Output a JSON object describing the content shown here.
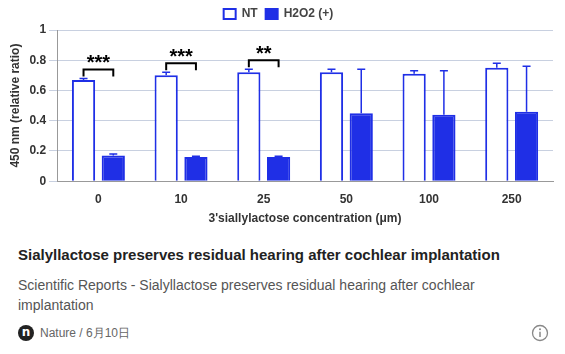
{
  "chart_data": {
    "type": "bar",
    "categories": [
      "0",
      "10",
      "25",
      "50",
      "100",
      "250"
    ],
    "series": [
      {
        "name": "NT",
        "color": "#1f2fe6",
        "marker": "hollow",
        "values": [
          0.67,
          0.7,
          0.72,
          0.72,
          0.71,
          0.75
        ],
        "errors": [
          0.01,
          0.02,
          0.02,
          0.02,
          0.02,
          0.03
        ]
      },
      {
        "name": "H2O2 (+)",
        "color": "#1f2fe6",
        "marker": "filled",
        "values": [
          0.17,
          0.16,
          0.16,
          0.45,
          0.44,
          0.46
        ],
        "errors": [
          0.01,
          0.005,
          0.005,
          0.29,
          0.29,
          0.3
        ]
      }
    ],
    "x_label": "3'siallylactose concentration (μm)",
    "y_label": "450 nm (relative ratio)",
    "ylim": [
      0,
      1
    ],
    "yticks": [
      0,
      0.2,
      0.4,
      0.6,
      0.8,
      1
    ],
    "grid": true,
    "legend": "top",
    "annotations": [
      {
        "category": "0",
        "text": "***"
      },
      {
        "category": "10",
        "text": "***"
      },
      {
        "category": "25",
        "text": "**"
      }
    ]
  },
  "card": {
    "title": "Sialyllactose preserves residual hearing after cochlear implantation",
    "description": "Scientific Reports - Sialyllactose preserves residual hearing after cochlear implantation",
    "logo": "n",
    "site": "Nature / 6月10日"
  }
}
